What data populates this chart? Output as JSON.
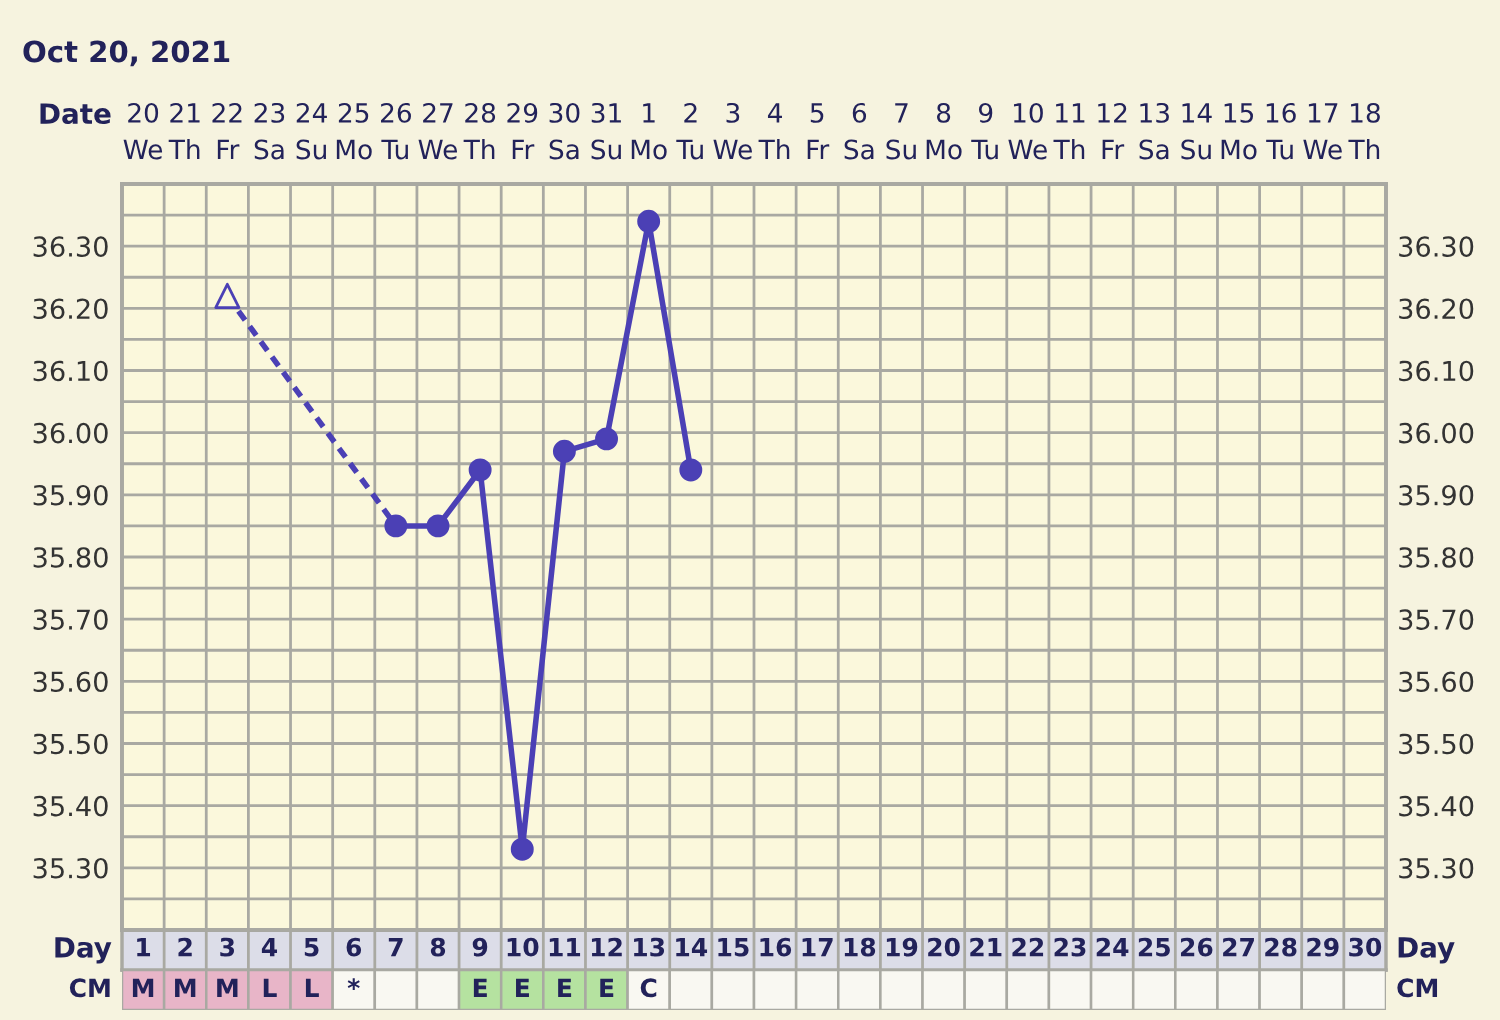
{
  "chart_data": [
    {
      "type": "line",
      "title": "Oct 20, 2021",
      "xlabel": "Day",
      "x2label": "Date",
      "xlim": [
        0.5,
        30.5
      ],
      "xticks": [
        1,
        2,
        3,
        4,
        5,
        6,
        7,
        8,
        9,
        10,
        11,
        12,
        13,
        14,
        15,
        16,
        17,
        18,
        19,
        20,
        21,
        22,
        23,
        24,
        25,
        26,
        27,
        28,
        29,
        30
      ],
      "x2lim": [
        "2021-10-19T12:00",
        "2021-11-18T12:00"
      ],
      "x2ticks": [
        {
          "value": "2021-10-20",
          "label": "20\nWe"
        },
        {
          "value": "2021-10-21",
          "label": "21\nTh"
        },
        {
          "value": "2021-10-22",
          "label": "22\nFr"
        },
        {
          "value": "2021-10-23",
          "label": "23\nSa"
        },
        {
          "value": "2021-10-24",
          "label": "24\nSu"
        },
        {
          "value": "2021-10-25",
          "label": "25\nMo"
        },
        {
          "value": "2021-10-26",
          "label": "26\nTu"
        },
        {
          "value": "2021-10-27",
          "label": "27\nWe"
        },
        {
          "value": "2021-10-28",
          "label": "28\nTh"
        },
        {
          "value": "2021-10-29",
          "label": "29\nFr"
        },
        {
          "value": "2021-10-30",
          "label": "30\nSa"
        },
        {
          "value": "2021-10-31",
          "label": "31\nSu"
        },
        {
          "value": "2021-11-01",
          "label": "1\nMo"
        },
        {
          "value": "2021-11-02",
          "label": "2\nTu"
        },
        {
          "value": "2021-11-03",
          "label": "3\nWe"
        },
        {
          "value": "2021-11-04",
          "label": "4\nTh"
        },
        {
          "value": "2021-11-05",
          "label": "5\nFr"
        },
        {
          "value": "2021-11-06",
          "label": "6\nSa"
        },
        {
          "value": "2021-11-07",
          "label": "7\nSu"
        },
        {
          "value": "2021-11-08",
          "label": "8\nMo"
        },
        {
          "value": "2021-11-09",
          "label": "9\nTu"
        },
        {
          "value": "2021-11-10",
          "label": "10\nWe"
        },
        {
          "value": "2021-11-11",
          "label": "11\nTh"
        },
        {
          "value": "2021-11-12",
          "label": "12\nFr"
        },
        {
          "value": "2021-11-13",
          "label": "13\nSa"
        },
        {
          "value": "2021-11-14",
          "label": "14\nSu"
        },
        {
          "value": "2021-11-15",
          "label": "15\nMo"
        },
        {
          "value": "2021-11-16",
          "label": "16\nTu"
        },
        {
          "value": "2021-11-17",
          "label": "17\nWe"
        },
        {
          "value": "2021-11-18",
          "label": "18\nTh"
        }
      ],
      "ylim": [
        35.2,
        36.4
      ],
      "yticks": [
        {
          "value": 35.25,
          "label": null
        },
        {
          "value": 35.3,
          "label": "35.30"
        },
        {
          "value": 35.35,
          "label": null
        },
        {
          "value": 35.4,
          "label": "35.40"
        },
        {
          "value": 35.45,
          "label": null
        },
        {
          "value": 35.5,
          "label": "35.50"
        },
        {
          "value": 35.55,
          "label": null
        },
        {
          "value": 35.6,
          "label": "35.60"
        },
        {
          "value": 35.65,
          "label": null
        },
        {
          "value": 35.7,
          "label": "35.70"
        },
        {
          "value": 35.75,
          "label": null
        },
        {
          "value": 35.8,
          "label": "35.80"
        },
        {
          "value": 35.85,
          "label": null
        },
        {
          "value": 35.9,
          "label": "35.90"
        },
        {
          "value": 35.95,
          "label": null
        },
        {
          "value": 36.0,
          "label": "36.00"
        },
        {
          "value": 36.05,
          "label": null
        },
        {
          "value": 36.1,
          "label": "36.10"
        },
        {
          "value": 36.15,
          "label": null
        },
        {
          "value": 36.2,
          "label": "36.20"
        },
        {
          "value": 36.25,
          "label": null
        },
        {
          "value": 36.3,
          "label": "36.30"
        },
        {
          "value": 36.35,
          "label": null
        }
      ],
      "y2lim": [
        35.2,
        36.4
      ],
      "y2ticks": [
        {
          "value": 35.25,
          "label": null
        },
        {
          "value": 35.3,
          "label": "35.30"
        },
        {
          "value": 35.35,
          "label": null
        },
        {
          "value": 35.4,
          "label": "35.40"
        },
        {
          "value": 35.45,
          "label": null
        },
        {
          "value": 35.5,
          "label": "35.50"
        },
        {
          "value": 35.55,
          "label": null
        },
        {
          "value": 35.6,
          "label": "35.60"
        },
        {
          "value": 35.65,
          "label": null
        },
        {
          "value": 35.7,
          "label": "35.70"
        },
        {
          "value": 35.75,
          "label": null
        },
        {
          "value": 35.8,
          "label": "35.80"
        },
        {
          "value": 35.85,
          "label": null
        },
        {
          "value": 35.9,
          "label": "35.90"
        },
        {
          "value": 35.95,
          "label": null
        },
        {
          "value": 36.0,
          "label": "36.00"
        },
        {
          "value": 36.05,
          "label": null
        },
        {
          "value": 36.1,
          "label": "36.10"
        },
        {
          "value": 36.15,
          "label": null
        },
        {
          "value": 36.2,
          "label": "36.20"
        },
        {
          "value": 36.25,
          "label": null
        },
        {
          "value": 36.3,
          "label": "36.30"
        },
        {
          "value": 36.35,
          "label": null
        }
      ],
      "grid": true,
      "series": [
        {
          "x": [
            3,
            7
          ],
          "values": [
            36.22,
            35.85
          ],
          "color": "#4b40b5",
          "line_style": "dashed"
        },
        {
          "type": "scatter",
          "x": [
            3
          ],
          "values": [
            36.22
          ],
          "color": "#4b40b5",
          "marker": "triangle"
        },
        {
          "x": [
            7,
            8,
            9,
            10,
            11,
            12,
            13,
            14
          ],
          "values": [
            35.85,
            35.85,
            35.94,
            35.33,
            35.97,
            35.99,
            36.34,
            35.94
          ],
          "color": "#4b40b5",
          "line_style": "solid",
          "marker": "circle"
        }
      ]
    },
    {
      "type": "other",
      "ylabel": "CM",
      "y2label": "CM",
      "categories": [
        "M",
        "M",
        "M",
        "L",
        "L",
        "*",
        null,
        null,
        "E",
        "E",
        "E",
        "E",
        "C",
        null,
        null,
        null,
        null,
        null,
        null,
        null,
        null,
        null,
        null,
        null,
        null,
        null,
        null,
        null,
        null,
        null
      ],
      "colors": [
        "#e8b5c8",
        "#e8b5c8",
        "#e8b5c8",
        "#e8b5c8",
        "#e8b5c8",
        "#f9f8f2",
        "#f9f8f2",
        "#f9f8f2",
        "#b5e2a0",
        "#b5e2a0",
        "#b5e2a0",
        "#b5e2a0",
        "#f9f8f2",
        "#f9f8f2",
        "#f9f8f2",
        "#f9f8f2",
        "#f9f8f2",
        "#f9f8f2",
        "#f9f8f2",
        "#f9f8f2",
        "#f9f8f2",
        "#f9f8f2",
        "#f9f8f2",
        "#f9f8f2",
        "#f9f8f2",
        "#f9f8f2",
        "#f9f8f2",
        "#f9f8f2",
        "#f9f8f2",
        "#f9f8f2"
      ]
    }
  ]
}
